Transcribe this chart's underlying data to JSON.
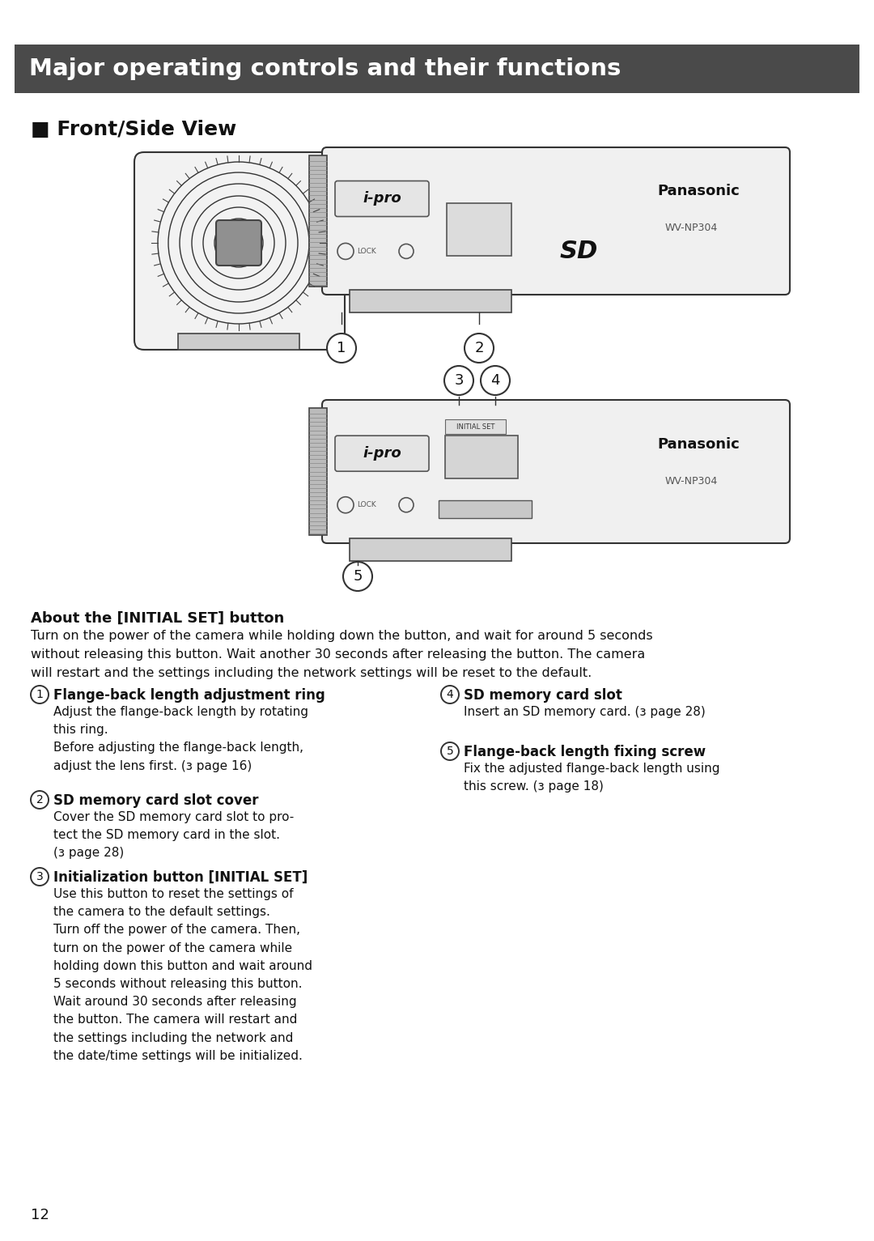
{
  "title": "Major operating controls and their functions",
  "title_bg": "#4a4a4a",
  "title_color": "#ffffff",
  "section_title": "■ Front/Side View",
  "about_title": "About the [INITIAL SET] button",
  "about_text": "Turn on the power of the camera while holding down the button, and wait for around 5 seconds\nwithout releasing this button. Wait another 30 seconds after releasing the button. The camera\nwill restart and the settings including the network settings will be reset to the default.",
  "item1_title": "Flange-back length adjustment ring",
  "item1_text": "Adjust the flange-back length by rotating\nthis ring.\nBefore adjusting the flange-back length,\nadjust the lens first. (з page 16)",
  "item2_title": "SD memory card slot cover",
  "item2_text": "Cover the SD memory card slot to pro-\ntect the SD memory card in the slot.\n(з page 28)",
  "item3_title": "Initialization button [INITIAL SET]",
  "item3_text": "Use this button to reset the settings of\nthe camera to the default settings.\nTurn off the power of the camera. Then,\nturn on the power of the camera while\nholding down this button and wait around\n5 seconds without releasing this button.\nWait around 30 seconds after releasing\nthe button. The camera will restart and\nthe settings including the network and\nthe date/time settings will be initialized.",
  "item4_title": "SD memory card slot",
  "item4_text": "Insert an SD memory card. (з page 28)",
  "item5_title": "Flange-back length fixing screw",
  "item5_text": "Fix the adjusted flange-back length using\nthis screw. (з page 18)",
  "page_number": "12",
  "bg_color": "#ffffff"
}
